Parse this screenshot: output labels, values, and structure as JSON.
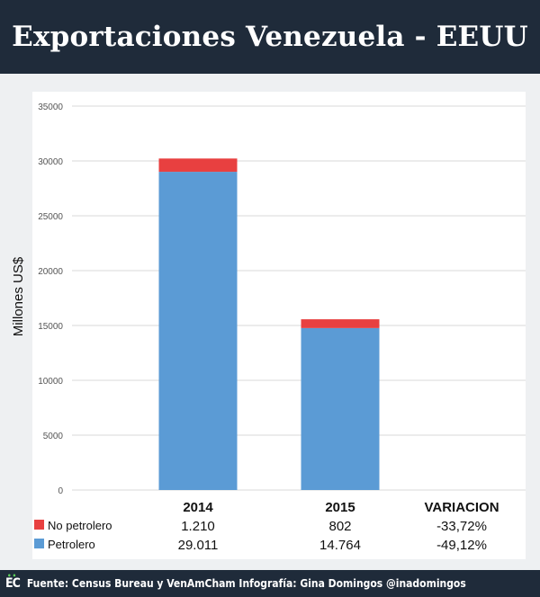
{
  "header": {
    "title": "Exportaciones Venezuela - EEUU"
  },
  "footer": {
    "logo": "EC",
    "text": "Fuente: Census Bureau y VenAmCham Infografía: Gina Domingos @inadomingos"
  },
  "colors": {
    "header_bg": "#1f2b3a",
    "petrolero": "#5b9bd5",
    "no_petrolero": "#e84040",
    "logo_accent": "#5ed35a"
  },
  "chart_data": {
    "type": "bar",
    "stacked": true,
    "title": "",
    "xlabel": "",
    "ylabel": "Millones US$",
    "ylim": [
      0,
      35000
    ],
    "yticks": [
      0,
      5000,
      10000,
      15000,
      20000,
      25000,
      30000,
      35000
    ],
    "grid": true,
    "categories": [
      "2014",
      "2015"
    ],
    "series": [
      {
        "name": "Petrolero",
        "values": [
          29011,
          14764
        ],
        "color": "#5b9bd5"
      },
      {
        "name": "No petrolero",
        "values": [
          1210,
          802
        ],
        "color": "#e84040"
      }
    ],
    "table": {
      "columns": [
        "2014",
        "2015",
        "VARIACION"
      ],
      "rows": [
        {
          "label": "No petrolero",
          "color": "#e84040",
          "cells": [
            "1.210",
            "802",
            "-33,72%"
          ]
        },
        {
          "label": "Petrolero",
          "color": "#5b9bd5",
          "cells": [
            "29.011",
            "14.764",
            "-49,12%"
          ]
        }
      ]
    }
  }
}
